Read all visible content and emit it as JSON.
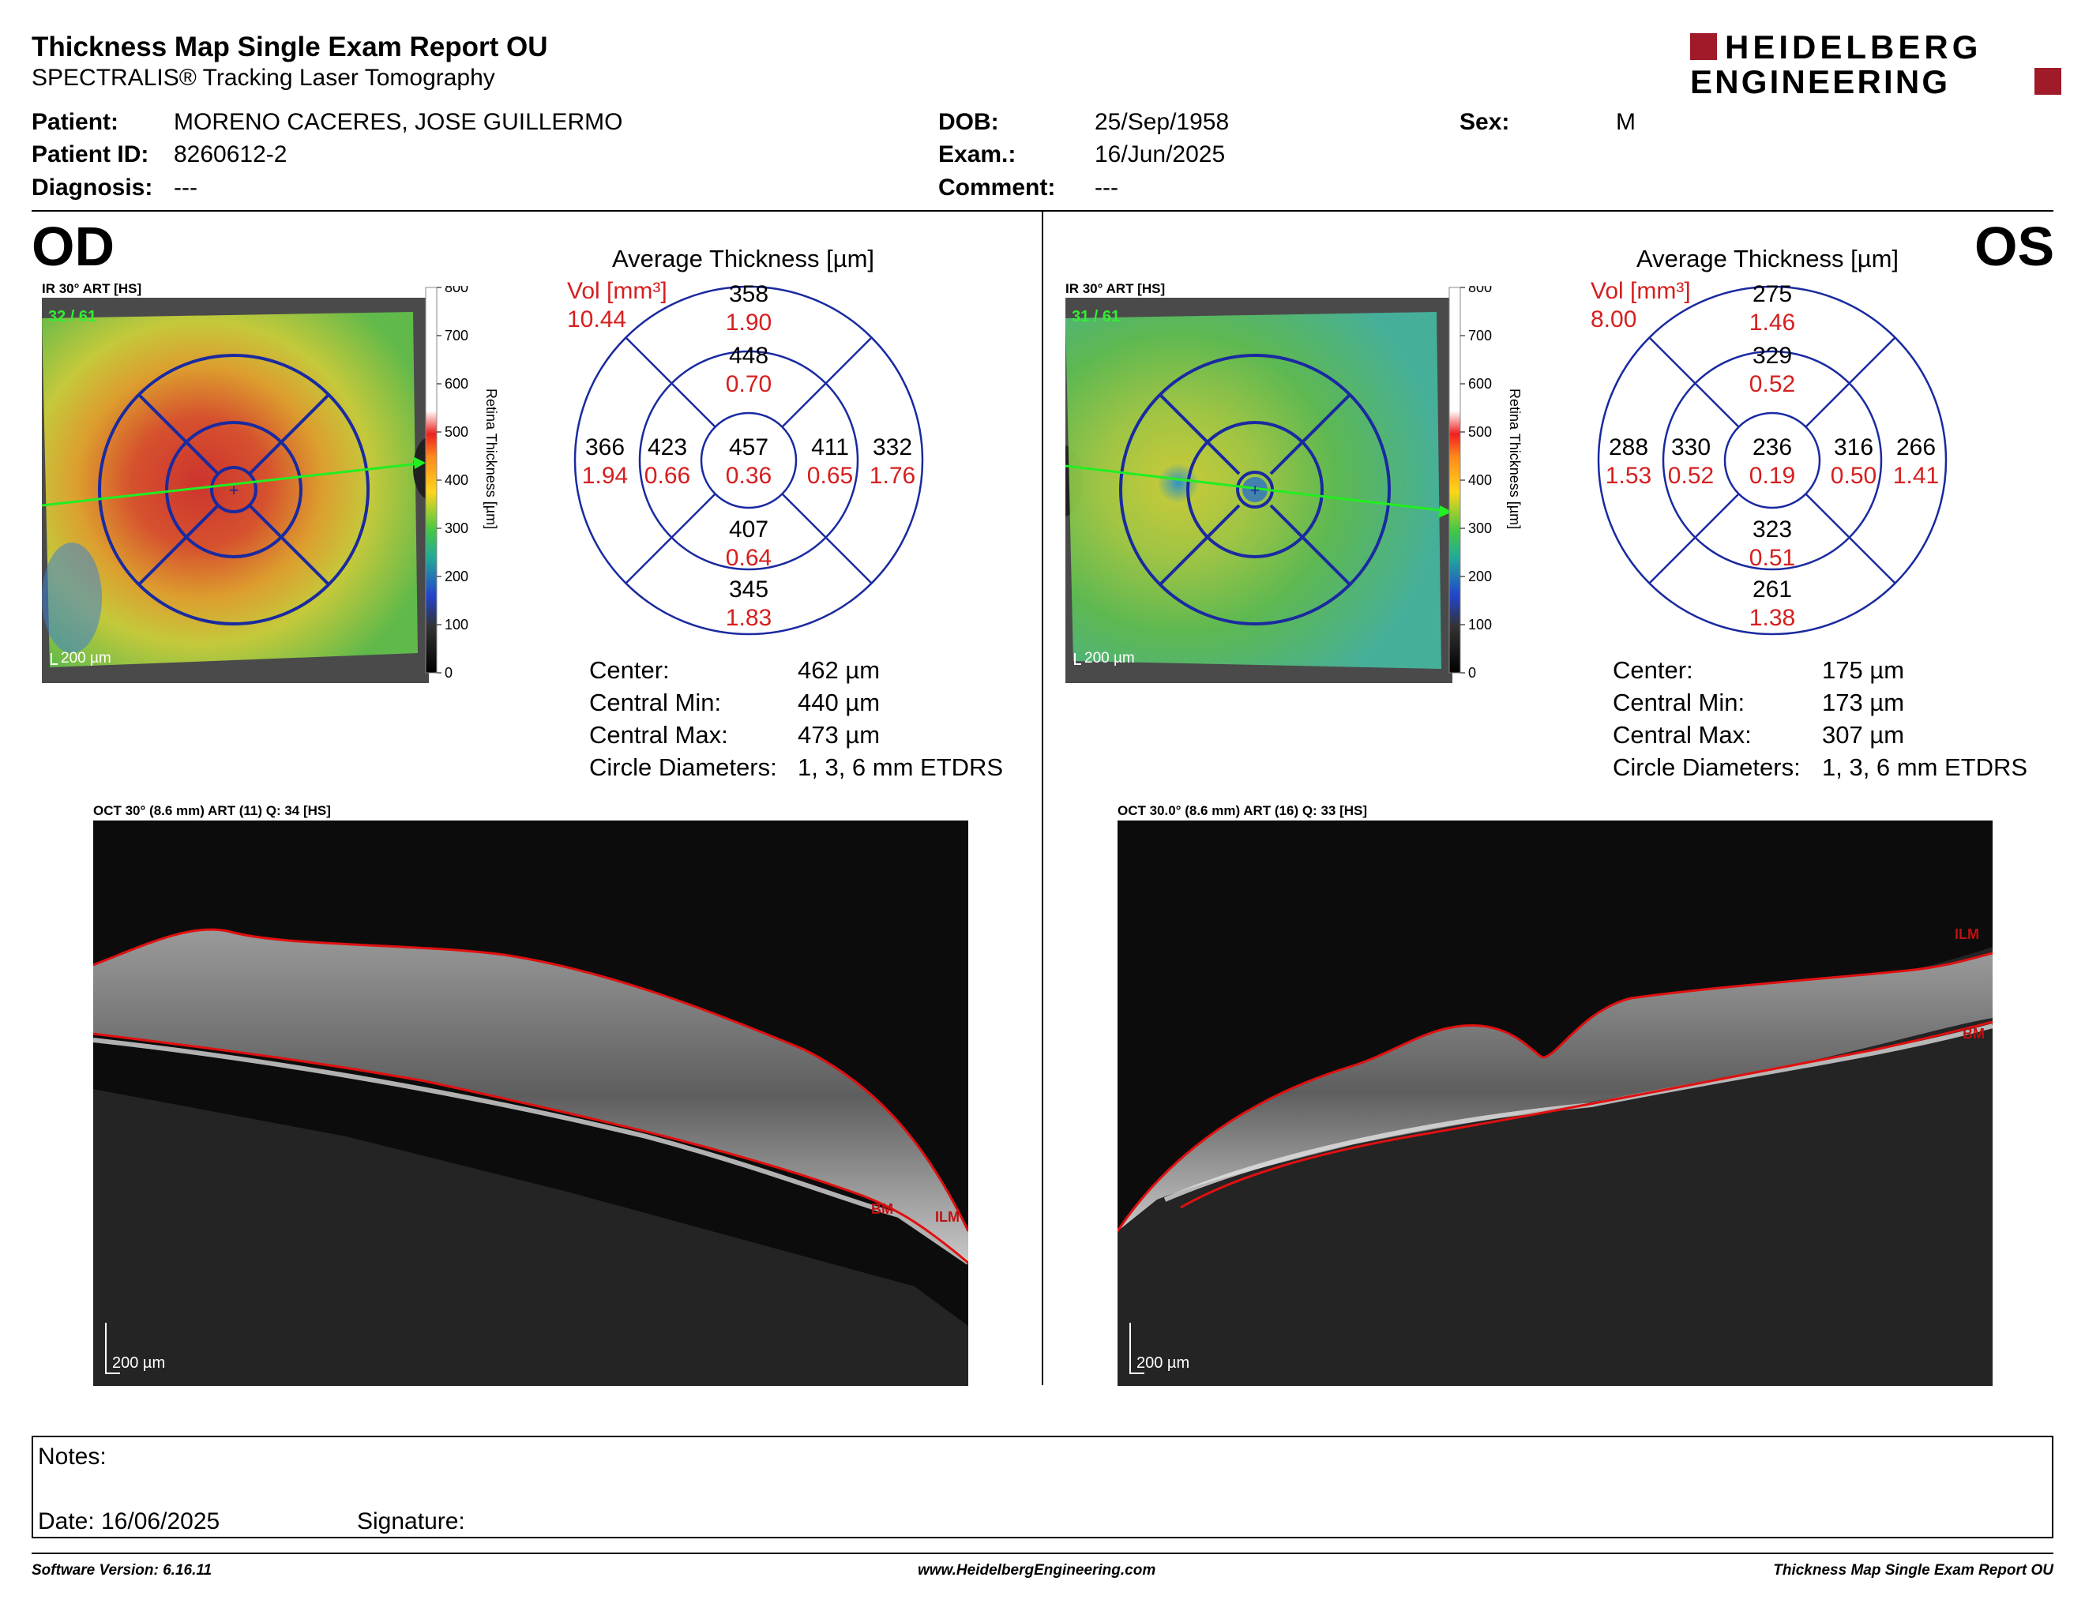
{
  "header": {
    "title": "Thickness Map Single Exam Report OU",
    "subtitle": "SPECTRALIS® Tracking Laser Tomography",
    "logo_line1": "HEIDELBERG",
    "logo_line2": "ENGINEERING",
    "logo_accent_color": "#a01a2a"
  },
  "patient": {
    "patient_label": "Patient:",
    "patient_value": "MORENO CACERES, JOSE GUILLERMO",
    "id_label": "Patient ID:",
    "id_value": "8260612-2",
    "diagnosis_label": "Diagnosis:",
    "diagnosis_value": "---",
    "dob_label": "DOB:",
    "dob_value": "25/Sep/1958",
    "exam_label": "Exam.:",
    "exam_value": "16/Jun/2025",
    "comment_label": "Comment:",
    "comment_value": "---",
    "sex_label": "Sex:",
    "sex_value": "M"
  },
  "od": {
    "eye_label": "OD",
    "ir_label": "IR 30° ART [HS]",
    "ir_counter": "32 / 61",
    "scale_label": "200 µm",
    "colorbar_title": "Retina  Thickness [µm]",
    "colorbar_ticks": [
      "800",
      "700",
      "600",
      "500",
      "400",
      "300",
      "200",
      "100",
      "0"
    ],
    "avg_title": "Average Thickness [µm]",
    "vol_label": "Vol [mm³]",
    "vol_value": "10.44",
    "etdrs": {
      "center": {
        "t": "457",
        "v": "0.36"
      },
      "inner_sup": {
        "t": "448",
        "v": "0.70"
      },
      "inner_inf": {
        "t": "407",
        "v": "0.64"
      },
      "inner_left": {
        "t": "423",
        "v": "0.66"
      },
      "inner_right": {
        "t": "411",
        "v": "0.65"
      },
      "outer_sup": {
        "t": "358",
        "v": "1.90"
      },
      "outer_inf": {
        "t": "345",
        "v": "1.83"
      },
      "outer_left": {
        "t": "366",
        "v": "1.94"
      },
      "outer_right": {
        "t": "332",
        "v": "1.76"
      }
    },
    "stats": {
      "center_label": "Center:",
      "center_value": "462 µm",
      "min_label": "Central Min:",
      "min_value": "440 µm",
      "max_label": "Central Max:",
      "max_value": "473 µm",
      "diam_label": "Circle Diameters:",
      "diam_value": "1, 3, 6 mm ETDRS"
    },
    "oct_label": "OCT 30° (8.6 mm) ART (11) Q: 34 [HS]",
    "oct_scale": "200 µm",
    "ilm": "ILM",
    "bm": "BM"
  },
  "os": {
    "eye_label": "OS",
    "ir_label": "IR 30° ART [HS]",
    "ir_counter": "31 / 61",
    "scale_label": "200 µm",
    "colorbar_title": "Retina  Thickness [µm]",
    "colorbar_ticks": [
      "800",
      "700",
      "600",
      "500",
      "400",
      "300",
      "200",
      "100",
      "0"
    ],
    "avg_title": "Average Thickness [µm]",
    "vol_label": "Vol [mm³]",
    "vol_value": "8.00",
    "etdrs": {
      "center": {
        "t": "236",
        "v": "0.19"
      },
      "inner_sup": {
        "t": "329",
        "v": "0.52"
      },
      "inner_inf": {
        "t": "323",
        "v": "0.51"
      },
      "inner_left": {
        "t": "330",
        "v": "0.52"
      },
      "inner_right": {
        "t": "316",
        "v": "0.50"
      },
      "outer_sup": {
        "t": "275",
        "v": "1.46"
      },
      "outer_inf": {
        "t": "261",
        "v": "1.38"
      },
      "outer_left": {
        "t": "288",
        "v": "1.53"
      },
      "outer_right": {
        "t": "266",
        "v": "1.41"
      }
    },
    "stats": {
      "center_label": "Center:",
      "center_value": "175 µm",
      "min_label": "Central Min:",
      "min_value": "173 µm",
      "max_label": "Central Max:",
      "max_value": "307 µm",
      "diam_label": "Circle Diameters:",
      "diam_value": "1, 3, 6 mm ETDRS"
    },
    "oct_label": "OCT 30.0° (8.6 mm) ART (16) Q: 33 [HS]",
    "oct_scale": "200 µm",
    "ilm": "ILM",
    "bm": "BM"
  },
  "notes": {
    "notes_label": "Notes:",
    "date_label": "Date: 16/06/2025",
    "signature_label": "Signature:"
  },
  "footer": {
    "software": "Software Version: 6.16.11",
    "website": "www.HeidelbergEngineering.com",
    "report_name": "Thickness Map Single Exam Report OU"
  },
  "colors": {
    "etdrs_lines": "#1a2aa0",
    "volume_text": "#d61f1f",
    "segmentation": "#e01010",
    "counter_green": "#33ee33"
  }
}
